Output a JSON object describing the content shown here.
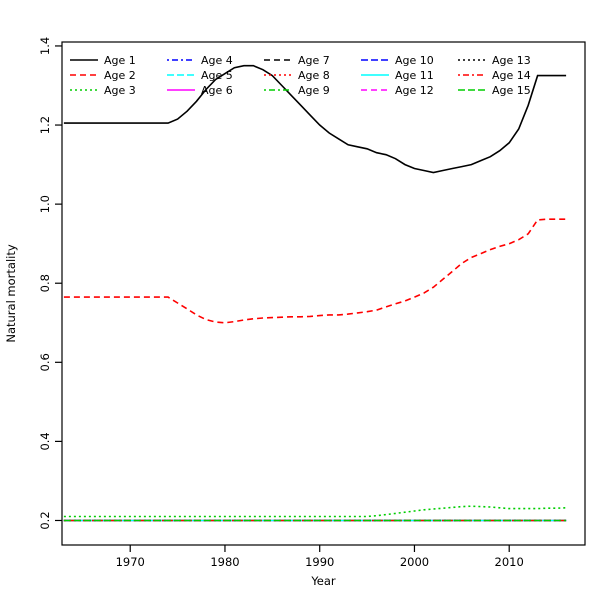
{
  "chart_data": {
    "type": "line",
    "title": "",
    "xlabel": "Year",
    "ylabel": "Natural mortality",
    "xlim": [
      1962.8,
      2018
    ],
    "ylim": [
      0.138,
      1.41
    ],
    "x_ticks": [
      1970,
      1980,
      1990,
      2000,
      2010
    ],
    "y_ticks": [
      0.2,
      0.4,
      0.6,
      0.8,
      1.0,
      1.2,
      1.4
    ],
    "grid": false,
    "legend_position": "top-left",
    "legend_columns": 5,
    "legend_rows": 3,
    "axis_color": "#000000",
    "x": [
      1963,
      1964,
      1965,
      1966,
      1967,
      1968,
      1969,
      1970,
      1971,
      1972,
      1973,
      1974,
      1975,
      1976,
      1977,
      1978,
      1979,
      1980,
      1981,
      1982,
      1983,
      1984,
      1985,
      1986,
      1987,
      1988,
      1989,
      1990,
      1991,
      1992,
      1993,
      1994,
      1995,
      1996,
      1997,
      1998,
      1999,
      2000,
      2001,
      2002,
      2003,
      2004,
      2005,
      2006,
      2007,
      2008,
      2009,
      2010,
      2011,
      2012,
      2013,
      2014,
      2015,
      2016
    ],
    "series": [
      {
        "name": "Age 1",
        "color": "#000000",
        "lty": "solid",
        "dash": "",
        "values": [
          1.205,
          1.205,
          1.205,
          1.205,
          1.205,
          1.205,
          1.205,
          1.205,
          1.205,
          1.205,
          1.205,
          1.205,
          1.215,
          1.235,
          1.26,
          1.29,
          1.315,
          1.33,
          1.345,
          1.35,
          1.35,
          1.34,
          1.325,
          1.3,
          1.275,
          1.25,
          1.225,
          1.2,
          1.18,
          1.165,
          1.15,
          1.145,
          1.14,
          1.13,
          1.125,
          1.115,
          1.1,
          1.09,
          1.085,
          1.08,
          1.085,
          1.09,
          1.095,
          1.1,
          1.11,
          1.12,
          1.135,
          1.155,
          1.19,
          1.25,
          1.325,
          1.325,
          1.325,
          1.325
        ]
      },
      {
        "name": "Age 2",
        "color": "#FF0000",
        "lty": "dashed",
        "dash": "6,4",
        "values": [
          0.765,
          0.765,
          0.765,
          0.765,
          0.765,
          0.765,
          0.765,
          0.765,
          0.765,
          0.765,
          0.765,
          0.765,
          0.75,
          0.735,
          0.72,
          0.708,
          0.702,
          0.7,
          0.703,
          0.707,
          0.71,
          0.712,
          0.713,
          0.714,
          0.715,
          0.715,
          0.716,
          0.718,
          0.72,
          0.72,
          0.722,
          0.725,
          0.728,
          0.732,
          0.74,
          0.748,
          0.755,
          0.765,
          0.775,
          0.79,
          0.81,
          0.83,
          0.85,
          0.865,
          0.875,
          0.885,
          0.893,
          0.9,
          0.91,
          0.925,
          0.96,
          0.962,
          0.962,
          0.962
        ]
      },
      {
        "name": "Age 3",
        "color": "#00CD00",
        "lty": "dotted",
        "dash": "2,3",
        "values": [
          0.21,
          0.21,
          0.21,
          0.21,
          0.21,
          0.21,
          0.21,
          0.21,
          0.21,
          0.21,
          0.21,
          0.21,
          0.21,
          0.21,
          0.21,
          0.21,
          0.21,
          0.21,
          0.21,
          0.21,
          0.21,
          0.21,
          0.21,
          0.21,
          0.21,
          0.21,
          0.21,
          0.21,
          0.21,
          0.21,
          0.21,
          0.21,
          0.21,
          0.212,
          0.215,
          0.218,
          0.221,
          0.224,
          0.227,
          0.229,
          0.231,
          0.233,
          0.235,
          0.236,
          0.235,
          0.234,
          0.232,
          0.23,
          0.23,
          0.23,
          0.23,
          0.231,
          0.231,
          0.232
        ]
      },
      {
        "name": "Age 4",
        "color": "#0000FF",
        "lty": "dotdash",
        "dash": "2,3,6,3",
        "constant": 0.2
      },
      {
        "name": "Age 5",
        "color": "#00FFFF",
        "lty": "longdash",
        "dash": "7,3",
        "constant": 0.2
      },
      {
        "name": "Age 6",
        "color": "#FF00FF",
        "lty": "solid",
        "dash": "",
        "constant": 0.2
      },
      {
        "name": "Age 7",
        "color": "#000000",
        "lty": "dashed",
        "dash": "6,4",
        "constant": 0.2
      },
      {
        "name": "Age 8",
        "color": "#FF0000",
        "lty": "dotted",
        "dash": "2,3",
        "constant": 0.2
      },
      {
        "name": "Age 9",
        "color": "#00CD00",
        "lty": "dotdash",
        "dash": "2,3,6,3",
        "constant": 0.2
      },
      {
        "name": "Age 10",
        "color": "#0000FF",
        "lty": "longdash",
        "dash": "7,3",
        "constant": 0.2
      },
      {
        "name": "Age 11",
        "color": "#00FFFF",
        "lty": "solid",
        "dash": "",
        "constant": 0.2
      },
      {
        "name": "Age 12",
        "color": "#FF00FF",
        "lty": "dashed",
        "dash": "6,4",
        "constant": 0.2
      },
      {
        "name": "Age 13",
        "color": "#000000",
        "lty": "dotted",
        "dash": "2,3",
        "constant": 0.2
      },
      {
        "name": "Age 14",
        "color": "#FF0000",
        "lty": "dotdash",
        "dash": "2,3,6,3",
        "constant": 0.2
      },
      {
        "name": "Age 15",
        "color": "#00CD00",
        "lty": "longdash",
        "dash": "7,3",
        "constant": 0.2
      }
    ]
  }
}
